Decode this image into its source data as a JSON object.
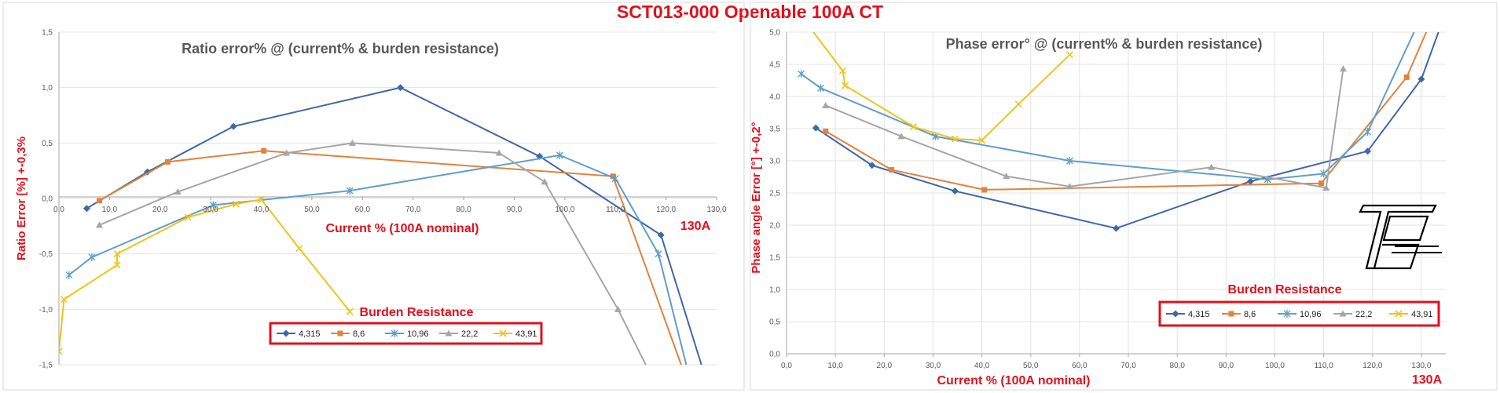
{
  "title": "SCT013-000 Openable 100A CT",
  "logo_text": "TB",
  "chart_data": [
    {
      "type": "line",
      "title": "Ratio error% @ (current% & burden resistance)",
      "xlabel": "Current %  (100A nominal)",
      "x_extra_label": "130A",
      "ylabel": "Ratio Error [%]  +-0,3%",
      "xlim": [
        0,
        130
      ],
      "ylim": [
        -1.5,
        1.5
      ],
      "xticks": [
        "0,0",
        "10,0",
        "20,0",
        "30,0",
        "40,0",
        "50,0",
        "60,0",
        "70,0",
        "80,0",
        "90,0",
        "100,0",
        "110,0",
        "120,0",
        "130,0"
      ],
      "yticks": [
        "1,5",
        "1,0",
        "0,5",
        "0,0",
        "-0,5",
        "-1,0",
        "-1,5"
      ],
      "legend_title": "Burden Resistance",
      "legend_position": "bottom-center",
      "series": [
        {
          "name": "4,315",
          "color": "#4068a8",
          "marker": "diamond",
          "x": [
            5.5,
            17.5,
            34.5,
            67.5,
            95,
            119,
            127
          ],
          "y": [
            -0.09,
            0.24,
            0.65,
            1.0,
            0.38,
            -0.33,
            -1.5
          ]
        },
        {
          "name": "8,6",
          "color": "#e3823b",
          "marker": "square",
          "x": [
            8,
            21.5,
            40.5,
            109.5,
            123
          ],
          "y": [
            -0.02,
            0.33,
            0.43,
            0.2,
            -1.5
          ]
        },
        {
          "name": "10,96",
          "color": "#5e9fcc",
          "marker": "star",
          "x": [
            2,
            6.5,
            30.5,
            57.5,
            99,
            110,
            118.5,
            124
          ],
          "y": [
            -0.69,
            -0.53,
            -0.06,
            0.07,
            0.39,
            0.18,
            -0.5,
            -1.5
          ]
        },
        {
          "name": "22,2",
          "color": "#a5a5a5",
          "marker": "triangle",
          "x": [
            8,
            23.5,
            45,
            58,
            87,
            96,
            110.5,
            116
          ],
          "y": [
            -0.24,
            0.06,
            0.41,
            0.5,
            0.41,
            0.15,
            -1.0,
            -1.5
          ]
        },
        {
          "name": "43,91",
          "color": "#f0c21c",
          "marker": "x",
          "x": [
            0,
            1,
            11.5,
            11.5,
            25.5,
            35,
            40,
            47.5,
            57.5
          ],
          "y": [
            -1.38,
            -0.91,
            -0.6,
            -0.5,
            -0.17,
            -0.05,
            -0.01,
            -0.45,
            -1.02
          ]
        }
      ]
    },
    {
      "type": "line",
      "title": "Phase error° @ (current% & burden resistance)",
      "xlabel": "Current %  (100A nominal)",
      "x_extra_label": "130A",
      "ylabel": "Phase angle Error [°]  +-0,2°",
      "xlim": [
        0,
        135
      ],
      "ylim": [
        0,
        5
      ],
      "xticks": [
        "0,0",
        "10,0",
        "20,0",
        "30,0",
        "40,0",
        "50,0",
        "60,0",
        "70,0",
        "80,0",
        "90,0",
        "100,0",
        "110,0",
        "120,0",
        "130,0"
      ],
      "yticks": [
        "5,0",
        "4,5",
        "4,0",
        "3,5",
        "3,0",
        "2,5",
        "2,0",
        "1,5",
        "1,0",
        "0,5",
        "0,0"
      ],
      "legend_title": "Burden Resistance",
      "legend_position": "right",
      "series": [
        {
          "name": "4,315",
          "color": "#4068a8",
          "marker": "diamond",
          "x": [
            6,
            17.5,
            34.5,
            67.5,
            95,
            119,
            130,
            133.5
          ],
          "y": [
            3.51,
            2.93,
            2.53,
            1.95,
            2.68,
            3.15,
            4.27,
            5.0
          ]
        },
        {
          "name": "8,6",
          "color": "#e3823b",
          "marker": "square",
          "x": [
            8,
            21.5,
            40.5,
            109.5,
            127,
            131
          ],
          "y": [
            3.46,
            2.86,
            2.55,
            2.65,
            4.3,
            5.0
          ]
        },
        {
          "name": "10,96",
          "color": "#5e9fcc",
          "marker": "star",
          "x": [
            3,
            7,
            30.5,
            58,
            98.5,
            110,
            119,
            128.5
          ],
          "y": [
            4.35,
            4.13,
            3.38,
            3.0,
            2.71,
            2.8,
            3.45,
            5.0
          ]
        },
        {
          "name": "22,2",
          "color": "#a5a5a5",
          "marker": "triangle",
          "x": [
            8,
            23.5,
            45,
            58,
            87,
            110.5,
            114
          ],
          "y": [
            3.86,
            3.38,
            2.76,
            2.6,
            2.9,
            2.58,
            4.43
          ]
        },
        {
          "name": "43,91",
          "color": "#f0c21c",
          "marker": "x",
          "x": [
            5.5,
            11.5,
            12,
            26,
            34.5,
            40,
            47.5,
            58
          ],
          "y": [
            5.0,
            4.4,
            4.17,
            3.53,
            3.34,
            3.32,
            3.88,
            4.65
          ]
        }
      ]
    }
  ]
}
